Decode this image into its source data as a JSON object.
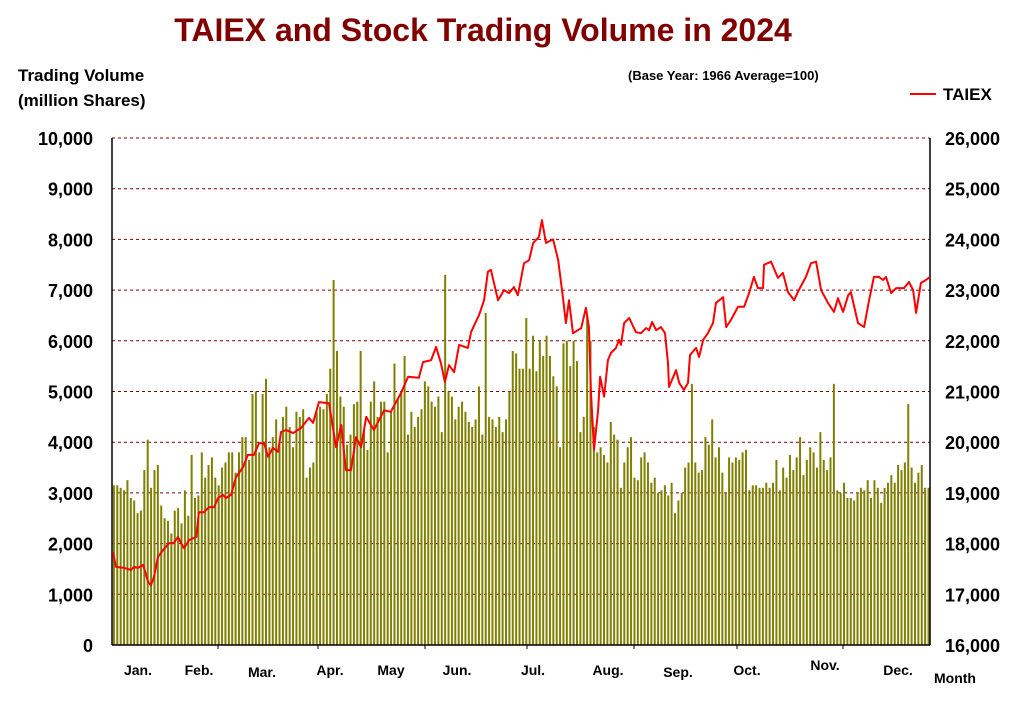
{
  "chart_data": {
    "type": "bar+line",
    "title": "TAIEX and Stock Trading Volume in 2024",
    "subtitle": "(Base Year: 1966 Average=100)",
    "ylabel_left": [
      "Trading Volume",
      "(million Shares)"
    ],
    "xlabel": "Month",
    "ylim_left": [
      0,
      10000
    ],
    "ylim_right": [
      16000,
      26000
    ],
    "yticks_left": [
      "0",
      "1,000",
      "2,000",
      "3,000",
      "4,000",
      "5,000",
      "6,000",
      "7,000",
      "8,000",
      "9,000",
      "10,000"
    ],
    "yticks_right": [
      "16,000",
      "17,000",
      "18,000",
      "19,000",
      "20,000",
      "21,000",
      "22,000",
      "23,000",
      "24,000",
      "25,000",
      "26,000"
    ],
    "months": [
      "Jan.",
      "Feb.",
      "Mar.",
      "Apr.",
      "May",
      "Jun.",
      "Jul.",
      "Aug.",
      "Sep.",
      "Oct.",
      "Nov.",
      "Dec."
    ],
    "grid": true,
    "legend": {
      "label": "TAIEX",
      "placement": "top-right"
    },
    "colors": {
      "title": "#800000",
      "volume": "#808000",
      "taiex": "#ff0000",
      "grid": "#800000"
    },
    "volume_series": {
      "name": "Trading Volume",
      "values": [
        3150,
        3150,
        3100,
        3050,
        3250,
        2900,
        2850,
        2600,
        2650,
        3450,
        4050,
        3100,
        3450,
        3550,
        2750,
        2500,
        2450,
        2200,
        2650,
        2700,
        2400,
        3050,
        2550,
        3750,
        2900,
        2950,
        3800,
        3300,
        3550,
        3700,
        3300,
        3150,
        3500,
        3600,
        3800,
        3800,
        3400,
        3800,
        4100,
        4100,
        3650,
        4950,
        5000,
        3800,
        4950,
        5250,
        3900,
        4100,
        4450,
        4000,
        4500,
        4700,
        4300,
        3900,
        4600,
        4500,
        4650,
        3300,
        3500,
        3600,
        4600,
        4700,
        4650,
        4950,
        5450,
        7200,
        5800,
        4900,
        4700,
        3950,
        4150,
        4750,
        4800,
        5800,
        4250,
        3850,
        4800,
        5200,
        4500,
        4800,
        4800,
        3800,
        4600,
        5550,
        4850,
        5000,
        5700,
        4150,
        4600,
        4300,
        4500,
        4650,
        5200,
        5100,
        4800,
        4700,
        4900,
        4200,
        7300,
        5000,
        4900,
        4450,
        4700,
        4800,
        4600,
        4400,
        4300,
        4450,
        5100,
        4150,
        6550,
        4500,
        4450,
        4300,
        4500,
        4200,
        4450,
        5000,
        5800,
        5750,
        5450,
        5450,
        6450,
        5450,
        6100,
        5400,
        6000,
        5700,
        6100,
        5700,
        5300,
        5100,
        3900,
        5950,
        6000,
        5500,
        6000,
        5600,
        4200,
        4500,
        6500,
        6000,
        4300,
        3800,
        3900,
        3750,
        3600,
        4400,
        4150,
        4050,
        3100,
        3600,
        3900,
        4100,
        3300,
        3250,
        3700,
        3800,
        3600,
        3200,
        3300,
        3000,
        3050,
        3150,
        2950,
        3200,
        2600,
        2850,
        3000,
        3500,
        3600,
        5150,
        3600,
        3400,
        3450,
        4100,
        3950,
        4450,
        3700,
        3900,
        3400,
        3000,
        3700,
        3600,
        3700,
        3650,
        3800,
        3850,
        3050,
        3150,
        3150,
        3100,
        3100,
        3200,
        3100,
        3200,
        3650,
        3050,
        3500,
        3300,
        3750,
        3450,
        3700,
        4100,
        3350,
        3650,
        3900,
        3800,
        3500,
        4200,
        3650,
        3450,
        3700,
        5150,
        3050,
        3000,
        3200,
        2900,
        2900,
        2850,
        3000,
        3100,
        3050,
        3250,
        2900,
        3250,
        3100,
        2800,
        3100,
        3200,
        3350,
        3200,
        3550,
        3450,
        3600,
        4750,
        3500,
        3200,
        3400,
        3550,
        3100,
        3100
      ]
    },
    "taiex_series": {
      "name": "TAIEX",
      "x_unit": "trading day index",
      "points": [
        [
          0,
          17830
        ],
        [
          0.9,
          17540
        ],
        [
          3.3,
          17520
        ],
        [
          5.3,
          17480
        ],
        [
          6.2,
          17540
        ],
        [
          7.4,
          17520
        ],
        [
          8.9,
          17580
        ],
        [
          10.4,
          17240
        ],
        [
          11.2,
          17180
        ],
        [
          12.1,
          17340
        ],
        [
          13.3,
          17740
        ],
        [
          14.8,
          17870
        ],
        [
          16.6,
          18010
        ],
        [
          18,
          18010
        ],
        [
          19.2,
          18130
        ],
        [
          21,
          17910
        ],
        [
          22.5,
          18070
        ],
        [
          24.6,
          18130
        ],
        [
          25.4,
          18620
        ],
        [
          26.9,
          18620
        ],
        [
          28.4,
          18720
        ],
        [
          29.9,
          18720
        ],
        [
          31.1,
          18900
        ],
        [
          32.5,
          18960
        ],
        [
          33.4,
          18900
        ],
        [
          34.9,
          18960
        ],
        [
          36.4,
          19310
        ],
        [
          38.5,
          19510
        ],
        [
          39.9,
          19750
        ],
        [
          41.7,
          19750
        ],
        [
          43.2,
          19980
        ],
        [
          44.7,
          19980
        ],
        [
          45.9,
          19710
        ],
        [
          47.3,
          19890
        ],
        [
          48.8,
          19810
        ],
        [
          49.7,
          20200
        ],
        [
          51.2,
          20240
        ],
        [
          53.3,
          20180
        ],
        [
          55.6,
          20280
        ],
        [
          58,
          20480
        ],
        [
          59.2,
          20380
        ],
        [
          60.9,
          20790
        ],
        [
          63.9,
          20770
        ],
        [
          66,
          19900
        ],
        [
          67.5,
          20340
        ],
        [
          68.9,
          19450
        ],
        [
          70.4,
          19450
        ],
        [
          71.9,
          20100
        ],
        [
          73.4,
          19900
        ],
        [
          74.9,
          20500
        ],
        [
          77.2,
          20240
        ],
        [
          80.2,
          20630
        ],
        [
          82.2,
          20600
        ],
        [
          85.2,
          20970
        ],
        [
          87.3,
          21290
        ],
        [
          90.5,
          21270
        ],
        [
          91.7,
          21580
        ],
        [
          94.1,
          21620
        ],
        [
          95.6,
          21880
        ],
        [
          97,
          21560
        ],
        [
          98.2,
          21190
        ],
        [
          99.4,
          21520
        ],
        [
          100.9,
          21380
        ],
        [
          102.4,
          21920
        ],
        [
          105,
          21860
        ],
        [
          105.9,
          22170
        ],
        [
          108.3,
          22510
        ],
        [
          109.8,
          22800
        ],
        [
          110.9,
          23360
        ],
        [
          111.8,
          23400
        ],
        [
          113.9,
          22800
        ],
        [
          115.7,
          23000
        ],
        [
          117.2,
          22940
        ],
        [
          118.6,
          23060
        ],
        [
          119.8,
          22900
        ],
        [
          121.6,
          23530
        ],
        [
          123.1,
          23590
        ],
        [
          124.3,
          23930
        ],
        [
          126,
          24050
        ],
        [
          126.9,
          24380
        ],
        [
          128.1,
          23930
        ],
        [
          130.2,
          24000
        ],
        [
          131.7,
          23590
        ],
        [
          133.1,
          22860
        ],
        [
          134,
          22350
        ],
        [
          134.9,
          22800
        ],
        [
          136.1,
          22150
        ],
        [
          138.5,
          22250
        ],
        [
          139.9,
          22650
        ],
        [
          140.8,
          22270
        ],
        [
          141.4,
          20970
        ],
        [
          142.3,
          19850
        ],
        [
          143.5,
          20630
        ],
        [
          144.1,
          21290
        ],
        [
          145.3,
          20900
        ],
        [
          146.4,
          21620
        ],
        [
          147.3,
          21760
        ],
        [
          148.8,
          21860
        ],
        [
          149.7,
          22020
        ],
        [
          150.3,
          21920
        ],
        [
          151.2,
          22350
        ],
        [
          152.7,
          22450
        ],
        [
          154.7,
          22170
        ],
        [
          156.2,
          22150
        ],
        [
          157.7,
          22250
        ],
        [
          158.6,
          22210
        ],
        [
          159.5,
          22370
        ],
        [
          160.7,
          22210
        ],
        [
          162.1,
          22270
        ],
        [
          163.3,
          22150
        ],
        [
          164.2,
          21560
        ],
        [
          164.5,
          21090
        ],
        [
          166.6,
          21420
        ],
        [
          167.5,
          21170
        ],
        [
          168.9,
          21030
        ],
        [
          170.1,
          21170
        ],
        [
          170.7,
          21720
        ],
        [
          172.5,
          21860
        ],
        [
          173.4,
          21680
        ],
        [
          174.6,
          22020
        ],
        [
          176,
          22150
        ],
        [
          177.5,
          22350
        ],
        [
          178.4,
          22750
        ],
        [
          180.5,
          22860
        ],
        [
          181.4,
          22270
        ],
        [
          182.8,
          22410
        ],
        [
          184.9,
          22670
        ],
        [
          186.7,
          22670
        ],
        [
          188.2,
          22940
        ],
        [
          189.6,
          23260
        ],
        [
          190.8,
          23040
        ],
        [
          192.3,
          23040
        ],
        [
          192.6,
          23500
        ],
        [
          194.7,
          23560
        ],
        [
          196.7,
          23240
        ],
        [
          198.2,
          23340
        ],
        [
          199.7,
          22960
        ],
        [
          201.5,
          22800
        ],
        [
          202.9,
          23000
        ],
        [
          205,
          23260
        ],
        [
          206.5,
          23530
        ],
        [
          208,
          23560
        ],
        [
          209.5,
          23000
        ],
        [
          211.5,
          22750
        ],
        [
          213.3,
          22570
        ],
        [
          214.5,
          22840
        ],
        [
          216,
          22570
        ],
        [
          217.5,
          22900
        ],
        [
          218.3,
          22960
        ],
        [
          220.4,
          22350
        ],
        [
          222.2,
          22270
        ],
        [
          223.7,
          22800
        ],
        [
          225.1,
          23260
        ],
        [
          226.6,
          23260
        ],
        [
          227.8,
          23200
        ],
        [
          228.7,
          23260
        ],
        [
          230.2,
          22940
        ],
        [
          231.7,
          23040
        ],
        [
          234,
          23040
        ],
        [
          235.5,
          23160
        ],
        [
          236.7,
          23000
        ],
        [
          237.6,
          22550
        ],
        [
          239,
          23140
        ],
        [
          240.5,
          23200
        ],
        [
          241.7,
          23260
        ]
      ]
    }
  }
}
